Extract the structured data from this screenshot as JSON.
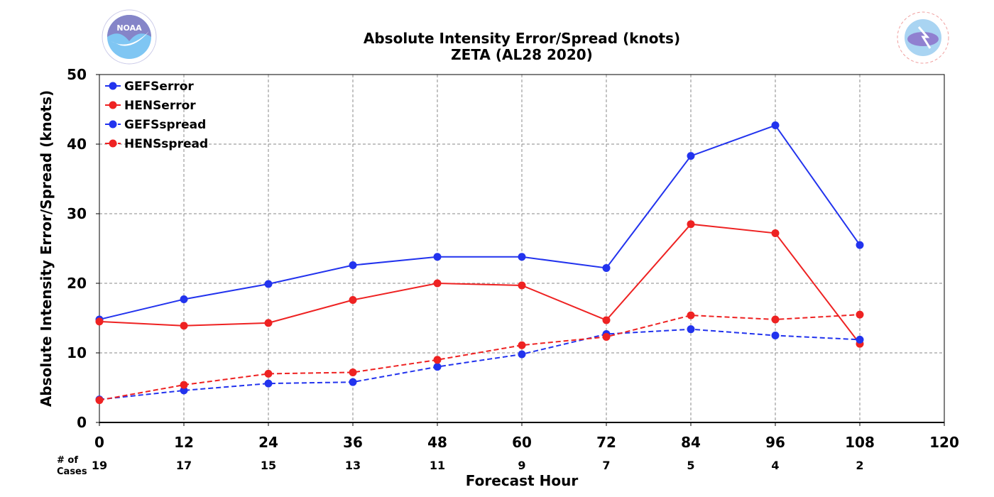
{
  "chart_data": {
    "type": "line",
    "title": "Absolute Intensity Error/Spread (knots)",
    "subtitle": "ZETA (AL28 2020)",
    "xlabel": "Forecast Hour",
    "ylabel": "Absolute Intensity Error/Spread (knots)",
    "xlim": [
      0,
      120
    ],
    "ylim": [
      0,
      50
    ],
    "xticks": [
      0,
      12,
      24,
      36,
      48,
      60,
      72,
      84,
      96,
      108,
      120
    ],
    "yticks": [
      0,
      10,
      20,
      30,
      40,
      50
    ],
    "grid": true,
    "legend_position": "top-left",
    "cases_label_line1": "# of",
    "cases_label_line2": "Cases",
    "cases": [
      {
        "x": 0,
        "n": "19"
      },
      {
        "x": 12,
        "n": "17"
      },
      {
        "x": 24,
        "n": "15"
      },
      {
        "x": 36,
        "n": "13"
      },
      {
        "x": 48,
        "n": "11"
      },
      {
        "x": 60,
        "n": "9"
      },
      {
        "x": 72,
        "n": "7"
      },
      {
        "x": 84,
        "n": "5"
      },
      {
        "x": 96,
        "n": "4"
      },
      {
        "x": 108,
        "n": "2"
      }
    ],
    "x": [
      0,
      12,
      24,
      36,
      48,
      60,
      72,
      84,
      96,
      108
    ],
    "series": [
      {
        "name": "GEFSerror",
        "color": "#2233ee",
        "dashed": false,
        "values": [
          14.8,
          17.7,
          19.9,
          22.6,
          23.8,
          23.8,
          22.2,
          38.3,
          42.7,
          25.5
        ]
      },
      {
        "name": "HENSerror",
        "color": "#ee2222",
        "dashed": false,
        "values": [
          14.5,
          13.9,
          14.3,
          17.6,
          20.0,
          19.7,
          14.7,
          28.5,
          27.2,
          11.3
        ]
      },
      {
        "name": "GEFSspread",
        "color": "#2233ee",
        "dashed": true,
        "values": [
          3.3,
          4.6,
          5.6,
          5.8,
          8.0,
          9.8,
          12.7,
          13.4,
          12.5,
          11.9
        ]
      },
      {
        "name": "HENSspread",
        "color": "#ee2222",
        "dashed": true,
        "values": [
          3.2,
          5.4,
          7.0,
          7.2,
          9.0,
          11.1,
          12.3,
          15.4,
          14.8,
          15.5
        ]
      }
    ]
  },
  "logos": {
    "left": {
      "icon": "noaa-logo",
      "text": "NOAA",
      "color": "#7fc6f3"
    },
    "right": {
      "icon": "nws-logo",
      "text": "NATIONAL WEATHER SERVICE",
      "color": "#ee6666"
    }
  }
}
